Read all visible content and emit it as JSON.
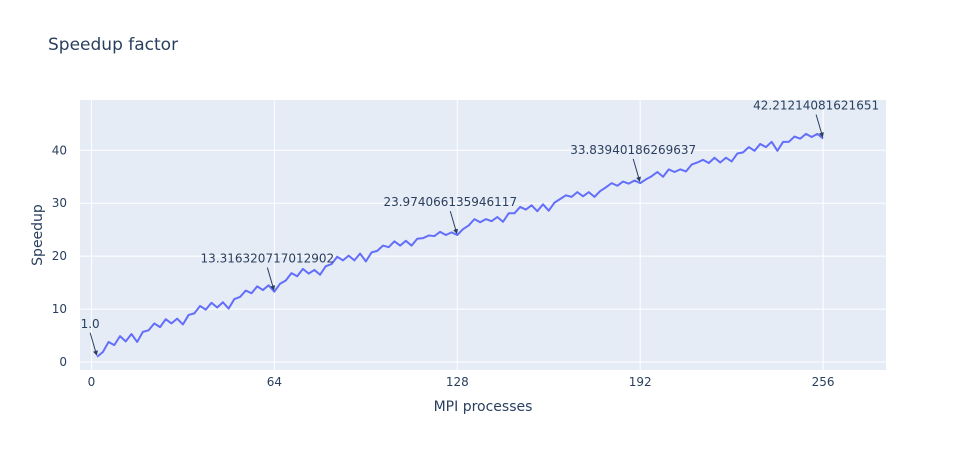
{
  "chart_data": {
    "type": "line",
    "title": "Speedup factor",
    "xlabel": "MPI processes",
    "ylabel": "Speedup",
    "xlim": [
      -4,
      278
    ],
    "ylim": [
      -1.5,
      49.5
    ],
    "xticks": [
      0,
      64,
      128,
      192,
      256
    ],
    "yticks": [
      0,
      10,
      20,
      30,
      40
    ],
    "grid": true,
    "legend": "none",
    "colors": {
      "line": "#636efa",
      "plot_bg": "#e5ecf6",
      "grid": "#ffffff",
      "text": "#2a3f5f",
      "arrow": "#2a3f5f"
    },
    "series": [
      {
        "x": [
          2,
          4,
          6,
          8,
          10,
          12,
          14,
          16,
          18,
          20,
          22,
          24,
          26,
          28,
          30,
          32,
          34,
          36,
          38,
          40,
          42,
          44,
          46,
          48,
          50,
          52,
          54,
          56,
          58,
          60,
          62,
          64,
          66,
          68,
          70,
          72,
          74,
          76,
          78,
          80,
          82,
          84,
          86,
          88,
          90,
          92,
          94,
          96,
          98,
          100,
          102,
          104,
          106,
          108,
          110,
          112,
          114,
          116,
          118,
          120,
          122,
          124,
          126,
          128,
          130,
          132,
          134,
          136,
          138,
          140,
          142,
          144,
          146,
          148,
          150,
          152,
          154,
          156,
          158,
          160,
          162,
          164,
          166,
          168,
          170,
          172,
          174,
          176,
          178,
          180,
          182,
          184,
          186,
          188,
          190,
          192,
          194,
          196,
          198,
          200,
          202,
          204,
          206,
          208,
          210,
          212,
          214,
          216,
          218,
          220,
          222,
          224,
          226,
          228,
          230,
          232,
          234,
          236,
          238,
          240,
          242,
          244,
          246,
          248,
          250,
          252,
          254,
          256
        ],
        "y": [
          1.0,
          1.9,
          3.8,
          3.2,
          4.9,
          3.9,
          5.3,
          3.8,
          5.7,
          6.0,
          7.3,
          6.6,
          8.1,
          7.3,
          8.2,
          7.1,
          8.9,
          9.2,
          10.6,
          9.9,
          11.2,
          10.3,
          11.3,
          10.1,
          11.9,
          12.3,
          13.5,
          13.0,
          14.3,
          13.6,
          14.5,
          13.3,
          14.8,
          15.4,
          16.8,
          16.2,
          17.6,
          16.7,
          17.4,
          16.5,
          18.1,
          18.5,
          19.9,
          19.2,
          20.1,
          19.2,
          20.5,
          19.0,
          20.7,
          21.0,
          22.0,
          21.7,
          22.8,
          22.0,
          22.9,
          22.0,
          23.3,
          23.4,
          23.9,
          23.8,
          24.6,
          24.0,
          24.5,
          24.0,
          25.1,
          25.8,
          27.0,
          26.4,
          27.0,
          26.6,
          27.4,
          26.5,
          28.1,
          28.1,
          29.3,
          28.8,
          29.6,
          28.5,
          29.8,
          28.6,
          30.1,
          30.8,
          31.5,
          31.2,
          32.1,
          31.3,
          32.1,
          31.2,
          32.3,
          33.0,
          33.8,
          33.3,
          34.1,
          33.7,
          34.3,
          33.8,
          34.5,
          35.1,
          35.9,
          35.0,
          36.4,
          35.9,
          36.4,
          36.0,
          37.3,
          37.7,
          38.2,
          37.6,
          38.6,
          37.7,
          38.6,
          37.9,
          39.4,
          39.6,
          40.6,
          39.9,
          41.2,
          40.6,
          41.6,
          39.9,
          41.6,
          41.6,
          42.6,
          42.2,
          43.1,
          42.5,
          43.1,
          42.21214081621651
        ]
      }
    ],
    "annotations": [
      {
        "x": 2,
        "y": 1.0,
        "text": "1.0"
      },
      {
        "x": 64,
        "y": 13.316320717012902,
        "text": "13.316320717012902"
      },
      {
        "x": 128,
        "y": 23.974066135946117,
        "text": "23.974066135946117"
      },
      {
        "x": 192,
        "y": 33.83940186269637,
        "text": "33.83940186269637"
      },
      {
        "x": 256,
        "y": 42.21214081621651,
        "text": "42.21214081621651"
      }
    ]
  }
}
